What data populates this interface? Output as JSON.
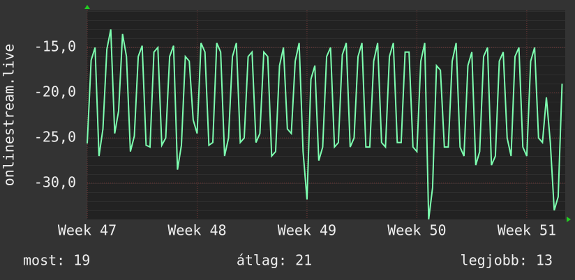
{
  "chart_data": {
    "type": "line",
    "y_label": "onlinestream.live",
    "series": [
      {
        "name": "onlinestream.live",
        "color": "#7dffb0",
        "values": [
          -25.6,
          -16.4,
          -15.0,
          -27.0,
          -24.0,
          -15.2,
          -13.0,
          -24.5,
          -22.0,
          -13.5,
          -16.0,
          -26.5,
          -24.8,
          -16.0,
          -14.8,
          -25.8,
          -26.0,
          -15.5,
          -15.0,
          -25.8,
          -25.0,
          -16.0,
          -14.8,
          -28.5,
          -25.8,
          -16.0,
          -16.5,
          -23.0,
          -24.5,
          -14.5,
          -15.5,
          -25.8,
          -25.5,
          -14.5,
          -15.5,
          -27.0,
          -25.0,
          -16.0,
          -14.5,
          -25.5,
          -25.0,
          -16.0,
          -15.5,
          -25.5,
          -24.5,
          -15.5,
          -16.0,
          -27.0,
          -26.5,
          -17.0,
          -15.0,
          -24.0,
          -24.5,
          -16.5,
          -14.5,
          -26.5,
          -31.8,
          -18.5,
          -17.0,
          -27.5,
          -26.0,
          -16.0,
          -15.0,
          -26.0,
          -25.5,
          -15.8,
          -14.5,
          -26.0,
          -25.0,
          -16.0,
          -14.5,
          -26.0,
          -26.0,
          -16.5,
          -14.5,
          -25.5,
          -26.0,
          -16.0,
          -14.5,
          -25.5,
          -25.5,
          -15.5,
          -15.5,
          -26.0,
          -26.5,
          -16.5,
          -14.5,
          -34.0,
          -30.5,
          -17.0,
          -17.5,
          -26.0,
          -26.0,
          -16.5,
          -14.5,
          -26.0,
          -27.0,
          -17.0,
          -15.5,
          -28.0,
          -26.5,
          -16.0,
          -15.0,
          -28.0,
          -27.0,
          -16.5,
          -15.5,
          -25.0,
          -27.0,
          -16.0,
          -15.0,
          -26.0,
          -27.0,
          -16.5,
          -15.0,
          -25.0,
          -25.5,
          -20.5,
          -25.5,
          -33.0,
          -31.5,
          -19.0
        ]
      }
    ],
    "xlim": [
      0,
      121.8
    ],
    "xticks": [
      {
        "value": 0,
        "label": "Week 47"
      },
      {
        "value": 28,
        "label": "Week 48"
      },
      {
        "value": 56,
        "label": "Week 49"
      },
      {
        "value": 84,
        "label": "Week 50"
      },
      {
        "value": 112,
        "label": "Week 51"
      }
    ],
    "ylim": [
      -34.0,
      -10.9
    ],
    "yticks": [
      {
        "value": -15,
        "label": "-15,0"
      },
      {
        "value": -20,
        "label": "-20,0"
      },
      {
        "value": -25,
        "label": "-25,0"
      },
      {
        "value": -30,
        "label": "-30,0"
      }
    ],
    "grid": true,
    "footer": [
      "most: 19",
      "átlag: 21",
      "legjobb: 13"
    ]
  }
}
